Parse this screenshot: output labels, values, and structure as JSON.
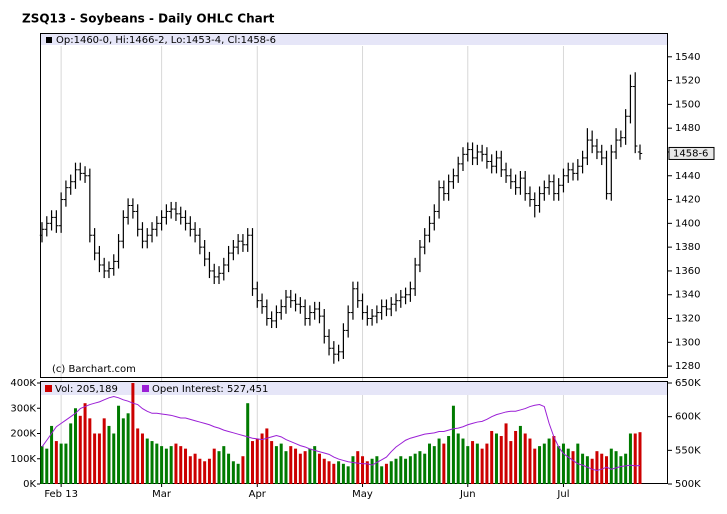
{
  "chart_data": [
    {
      "type": "ohlc",
      "title": "ZSQ13 - Soybeans - Daily OHLC Chart",
      "legend": "Op:1460-0, Hi:1466-2, Lo:1453-4, Cl:1458-6",
      "annotation": "(c) Barchart.com",
      "last_label": {
        "value": 1458.75,
        "label": "1458-6"
      },
      "color": "#000000",
      "ylim": [
        1270,
        1560
      ],
      "yticks": [
        1280,
        1300,
        1320,
        1340,
        1360,
        1380,
        1400,
        1420,
        1440,
        1460,
        1480,
        1500,
        1520,
        1540
      ],
      "open": [
        1390,
        1395,
        1400,
        1405,
        1398,
        1420,
        1430,
        1435,
        1445,
        1442,
        1440,
        1390,
        1375,
        1365,
        1360,
        1362,
        1368,
        1385,
        1405,
        1415,
        1410,
        1395,
        1385,
        1390,
        1395,
        1400,
        1405,
        1410,
        1412,
        1408,
        1405,
        1400,
        1395,
        1390,
        1380,
        1370,
        1360,
        1355,
        1358,
        1365,
        1375,
        1380,
        1385,
        1382,
        1390,
        1345,
        1335,
        1330,
        1320,
        1318,
        1325,
        1330,
        1338,
        1335,
        1332,
        1330,
        1320,
        1325,
        1328,
        1322,
        1305,
        1295,
        1290,
        1292,
        1310,
        1325,
        1345,
        1335,
        1325,
        1320,
        1322,
        1325,
        1330,
        1328,
        1332,
        1335,
        1338,
        1340,
        1345,
        1365,
        1380,
        1390,
        1400,
        1410,
        1430,
        1425,
        1435,
        1440,
        1450,
        1458,
        1462,
        1455,
        1460,
        1458,
        1452,
        1448,
        1455,
        1445,
        1440,
        1435,
        1430,
        1438,
        1425,
        1420,
        1415,
        1425,
        1430,
        1435,
        1425,
        1432,
        1440,
        1445,
        1442,
        1448,
        1455,
        1470,
        1465,
        1460,
        1455,
        1425,
        1460,
        1470,
        1472,
        1490,
        1515,
        1460
      ],
      "high": [
        1401,
        1406,
        1411,
        1411,
        1426,
        1436,
        1441,
        1451,
        1451,
        1448,
        1446,
        1396,
        1381,
        1371,
        1368,
        1374,
        1391,
        1411,
        1421,
        1421,
        1416,
        1401,
        1396,
        1401,
        1406,
        1411,
        1416,
        1418,
        1418,
        1414,
        1411,
        1406,
        1401,
        1396,
        1386,
        1376,
        1366,
        1364,
        1371,
        1381,
        1386,
        1391,
        1391,
        1396,
        1396,
        1351,
        1341,
        1336,
        1326,
        1331,
        1336,
        1344,
        1344,
        1341,
        1338,
        1336,
        1331,
        1334,
        1334,
        1328,
        1311,
        1301,
        1298,
        1316,
        1331,
        1351,
        1351,
        1341,
        1331,
        1328,
        1331,
        1336,
        1336,
        1338,
        1341,
        1344,
        1346,
        1351,
        1371,
        1386,
        1396,
        1406,
        1416,
        1436,
        1436,
        1441,
        1446,
        1456,
        1464,
        1468,
        1468,
        1466,
        1466,
        1464,
        1458,
        1461,
        1461,
        1451,
        1446,
        1441,
        1444,
        1444,
        1431,
        1426,
        1431,
        1436,
        1441,
        1441,
        1438,
        1446,
        1451,
        1451,
        1454,
        1461,
        1480,
        1478,
        1471,
        1466,
        1461,
        1466,
        1480,
        1478,
        1496,
        1525,
        1527,
        1466.25
      ],
      "low": [
        1384,
        1389,
        1394,
        1392,
        1392,
        1414,
        1424,
        1429,
        1436,
        1434,
        1384,
        1369,
        1359,
        1354,
        1354,
        1356,
        1362,
        1379,
        1399,
        1404,
        1389,
        1379,
        1379,
        1384,
        1389,
        1394,
        1399,
        1404,
        1402,
        1399,
        1394,
        1389,
        1384,
        1374,
        1364,
        1354,
        1349,
        1349,
        1352,
        1359,
        1369,
        1374,
        1376,
        1376,
        1339,
        1329,
        1324,
        1314,
        1312,
        1312,
        1319,
        1324,
        1329,
        1326,
        1324,
        1314,
        1314,
        1319,
        1316,
        1299,
        1289,
        1282,
        1284,
        1286,
        1304,
        1319,
        1329,
        1319,
        1314,
        1314,
        1316,
        1319,
        1322,
        1322,
        1326,
        1329,
        1332,
        1334,
        1339,
        1359,
        1374,
        1384,
        1394,
        1404,
        1419,
        1419,
        1429,
        1434,
        1444,
        1452,
        1449,
        1449,
        1452,
        1446,
        1442,
        1442,
        1439,
        1434,
        1429,
        1424,
        1424,
        1419,
        1414,
        1405,
        1409,
        1419,
        1424,
        1419,
        1419,
        1426,
        1434,
        1436,
        1436,
        1442,
        1449,
        1459,
        1454,
        1449,
        1420,
        1419,
        1454,
        1464,
        1466,
        1484,
        1459,
        1453.5
      ],
      "close": [
        1395,
        1400,
        1405,
        1398,
        1420,
        1430,
        1435,
        1445,
        1442,
        1440,
        1390,
        1375,
        1365,
        1360,
        1362,
        1368,
        1385,
        1405,
        1415,
        1410,
        1395,
        1385,
        1390,
        1395,
        1400,
        1405,
        1410,
        1412,
        1408,
        1405,
        1400,
        1395,
        1390,
        1380,
        1370,
        1360,
        1355,
        1358,
        1365,
        1375,
        1380,
        1385,
        1382,
        1390,
        1345,
        1335,
        1330,
        1320,
        1318,
        1325,
        1330,
        1338,
        1335,
        1332,
        1330,
        1320,
        1325,
        1328,
        1322,
        1305,
        1295,
        1290,
        1292,
        1310,
        1325,
        1345,
        1335,
        1325,
        1320,
        1322,
        1325,
        1330,
        1328,
        1332,
        1335,
        1338,
        1340,
        1345,
        1365,
        1380,
        1390,
        1400,
        1410,
        1430,
        1425,
        1435,
        1440,
        1450,
        1458,
        1462,
        1455,
        1460,
        1458,
        1452,
        1448,
        1455,
        1445,
        1440,
        1435,
        1430,
        1438,
        1425,
        1420,
        1415,
        1425,
        1430,
        1435,
        1425,
        1432,
        1440,
        1445,
        1442,
        1448,
        1455,
        1470,
        1465,
        1460,
        1455,
        1425,
        1460,
        1470,
        1472,
        1490,
        1515,
        1465,
        1458.75
      ]
    },
    {
      "type": "bar",
      "categories": [
        null,
        null,
        null,
        null,
        "Feb 13",
        null,
        null,
        null,
        null,
        null,
        null,
        null,
        null,
        null,
        null,
        null,
        null,
        null,
        null,
        null,
        null,
        null,
        null,
        null,
        null,
        "Mar",
        null,
        null,
        null,
        null,
        null,
        null,
        null,
        null,
        null,
        null,
        null,
        null,
        null,
        null,
        null,
        null,
        null,
        null,
        null,
        "Apr",
        null,
        null,
        null,
        null,
        null,
        null,
        null,
        null,
        null,
        null,
        null,
        null,
        null,
        null,
        null,
        null,
        null,
        null,
        null,
        null,
        null,
        "May",
        null,
        null,
        null,
        null,
        null,
        null,
        null,
        null,
        null,
        null,
        null,
        null,
        null,
        null,
        null,
        null,
        null,
        null,
        null,
        null,
        null,
        "Jun",
        null,
        null,
        null,
        null,
        null,
        null,
        null,
        null,
        null,
        null,
        null,
        null,
        null,
        null,
        null,
        null,
        null,
        null,
        null,
        "Jul",
        null,
        null,
        null,
        null,
        null,
        null,
        null,
        null,
        null,
        null,
        null,
        null,
        null,
        null,
        null,
        null
      ],
      "grid": true,
      "ylim": [
        0,
        400000
      ],
      "yticks": [
        {
          "value": 0,
          "label": "0K"
        },
        {
          "value": 100000,
          "label": "100K"
        },
        {
          "value": 200000,
          "label": "200K"
        },
        {
          "value": 300000,
          "label": "300K"
        },
        {
          "value": 400000,
          "label": "400K"
        }
      ],
      "y2lim": [
        500000,
        650000
      ],
      "y2ticks": [
        {
          "value": 500000,
          "label": "500K"
        },
        {
          "value": 550000,
          "label": "550K"
        },
        {
          "value": 600000,
          "label": "600K"
        },
        {
          "value": 650000,
          "label": "650K"
        }
      ],
      "series": [
        {
          "name": "Vol: 205,189",
          "color": "#cc0000",
          "up_color": "#007a00",
          "values": [
            150000,
            140000,
            230000,
            170000,
            160000,
            160000,
            240000,
            300000,
            270000,
            320000,
            260000,
            200000,
            200000,
            260000,
            230000,
            200000,
            310000,
            260000,
            280000,
            400000,
            220000,
            200000,
            180000,
            170000,
            160000,
            150000,
            140000,
            150000,
            160000,
            150000,
            140000,
            110000,
            120000,
            100000,
            90000,
            100000,
            140000,
            130000,
            150000,
            120000,
            90000,
            80000,
            110000,
            320000,
            170000,
            180000,
            200000,
            220000,
            170000,
            150000,
            160000,
            130000,
            150000,
            140000,
            120000,
            130000,
            140000,
            150000,
            120000,
            100000,
            90000,
            80000,
            90000,
            80000,
            70000,
            110000,
            130000,
            110000,
            90000,
            100000,
            110000,
            70000,
            80000,
            90000,
            100000,
            110000,
            100000,
            110000,
            120000,
            130000,
            120000,
            160000,
            150000,
            180000,
            160000,
            190000,
            310000,
            200000,
            180000,
            150000,
            170000,
            160000,
            140000,
            160000,
            210000,
            200000,
            190000,
            240000,
            170000,
            210000,
            230000,
            200000,
            180000,
            140000,
            150000,
            160000,
            180000,
            190000,
            150000,
            160000,
            140000,
            130000,
            160000,
            120000,
            110000,
            100000,
            130000,
            120000,
            110000,
            140000,
            130000,
            110000,
            120000,
            200000,
            200000,
            205189
          ]
        },
        {
          "name": "Open Interest: 527,451",
          "type": "line",
          "axis": "y2",
          "color": "#9b1fd6",
          "values": [
            555000,
            565000,
            575000,
            585000,
            590000,
            595000,
            600000,
            605000,
            612000,
            615000,
            618000,
            620000,
            622000,
            625000,
            628000,
            630000,
            628000,
            625000,
            623000,
            620000,
            618000,
            612000,
            608000,
            605000,
            605000,
            604000,
            603000,
            602000,
            600000,
            598000,
            598000,
            596000,
            594000,
            592000,
            590000,
            588000,
            585000,
            583000,
            580000,
            578000,
            576000,
            574000,
            572000,
            570000,
            568000,
            567000,
            566000,
            568000,
            570000,
            572000,
            570000,
            566000,
            563000,
            560000,
            557000,
            555000,
            552000,
            550000,
            548000,
            546000,
            544000,
            540000,
            537000,
            535000,
            533000,
            532000,
            531000,
            530000,
            530000,
            528000,
            532000,
            536000,
            540000,
            548000,
            555000,
            560000,
            565000,
            568000,
            570000,
            572000,
            574000,
            575000,
            576000,
            578000,
            578000,
            580000,
            582000,
            583000,
            585000,
            588000,
            590000,
            592000,
            593000,
            596000,
            600000,
            603000,
            605000,
            607000,
            608000,
            608000,
            610000,
            612000,
            615000,
            617000,
            618000,
            615000,
            590000,
            570000,
            555000,
            545000,
            540000,
            535000,
            530000,
            528000,
            525000,
            522000,
            520000,
            522000,
            525000,
            522000,
            524000,
            526000,
            527000,
            528000,
            527000,
            527451
          ]
        }
      ]
    }
  ]
}
